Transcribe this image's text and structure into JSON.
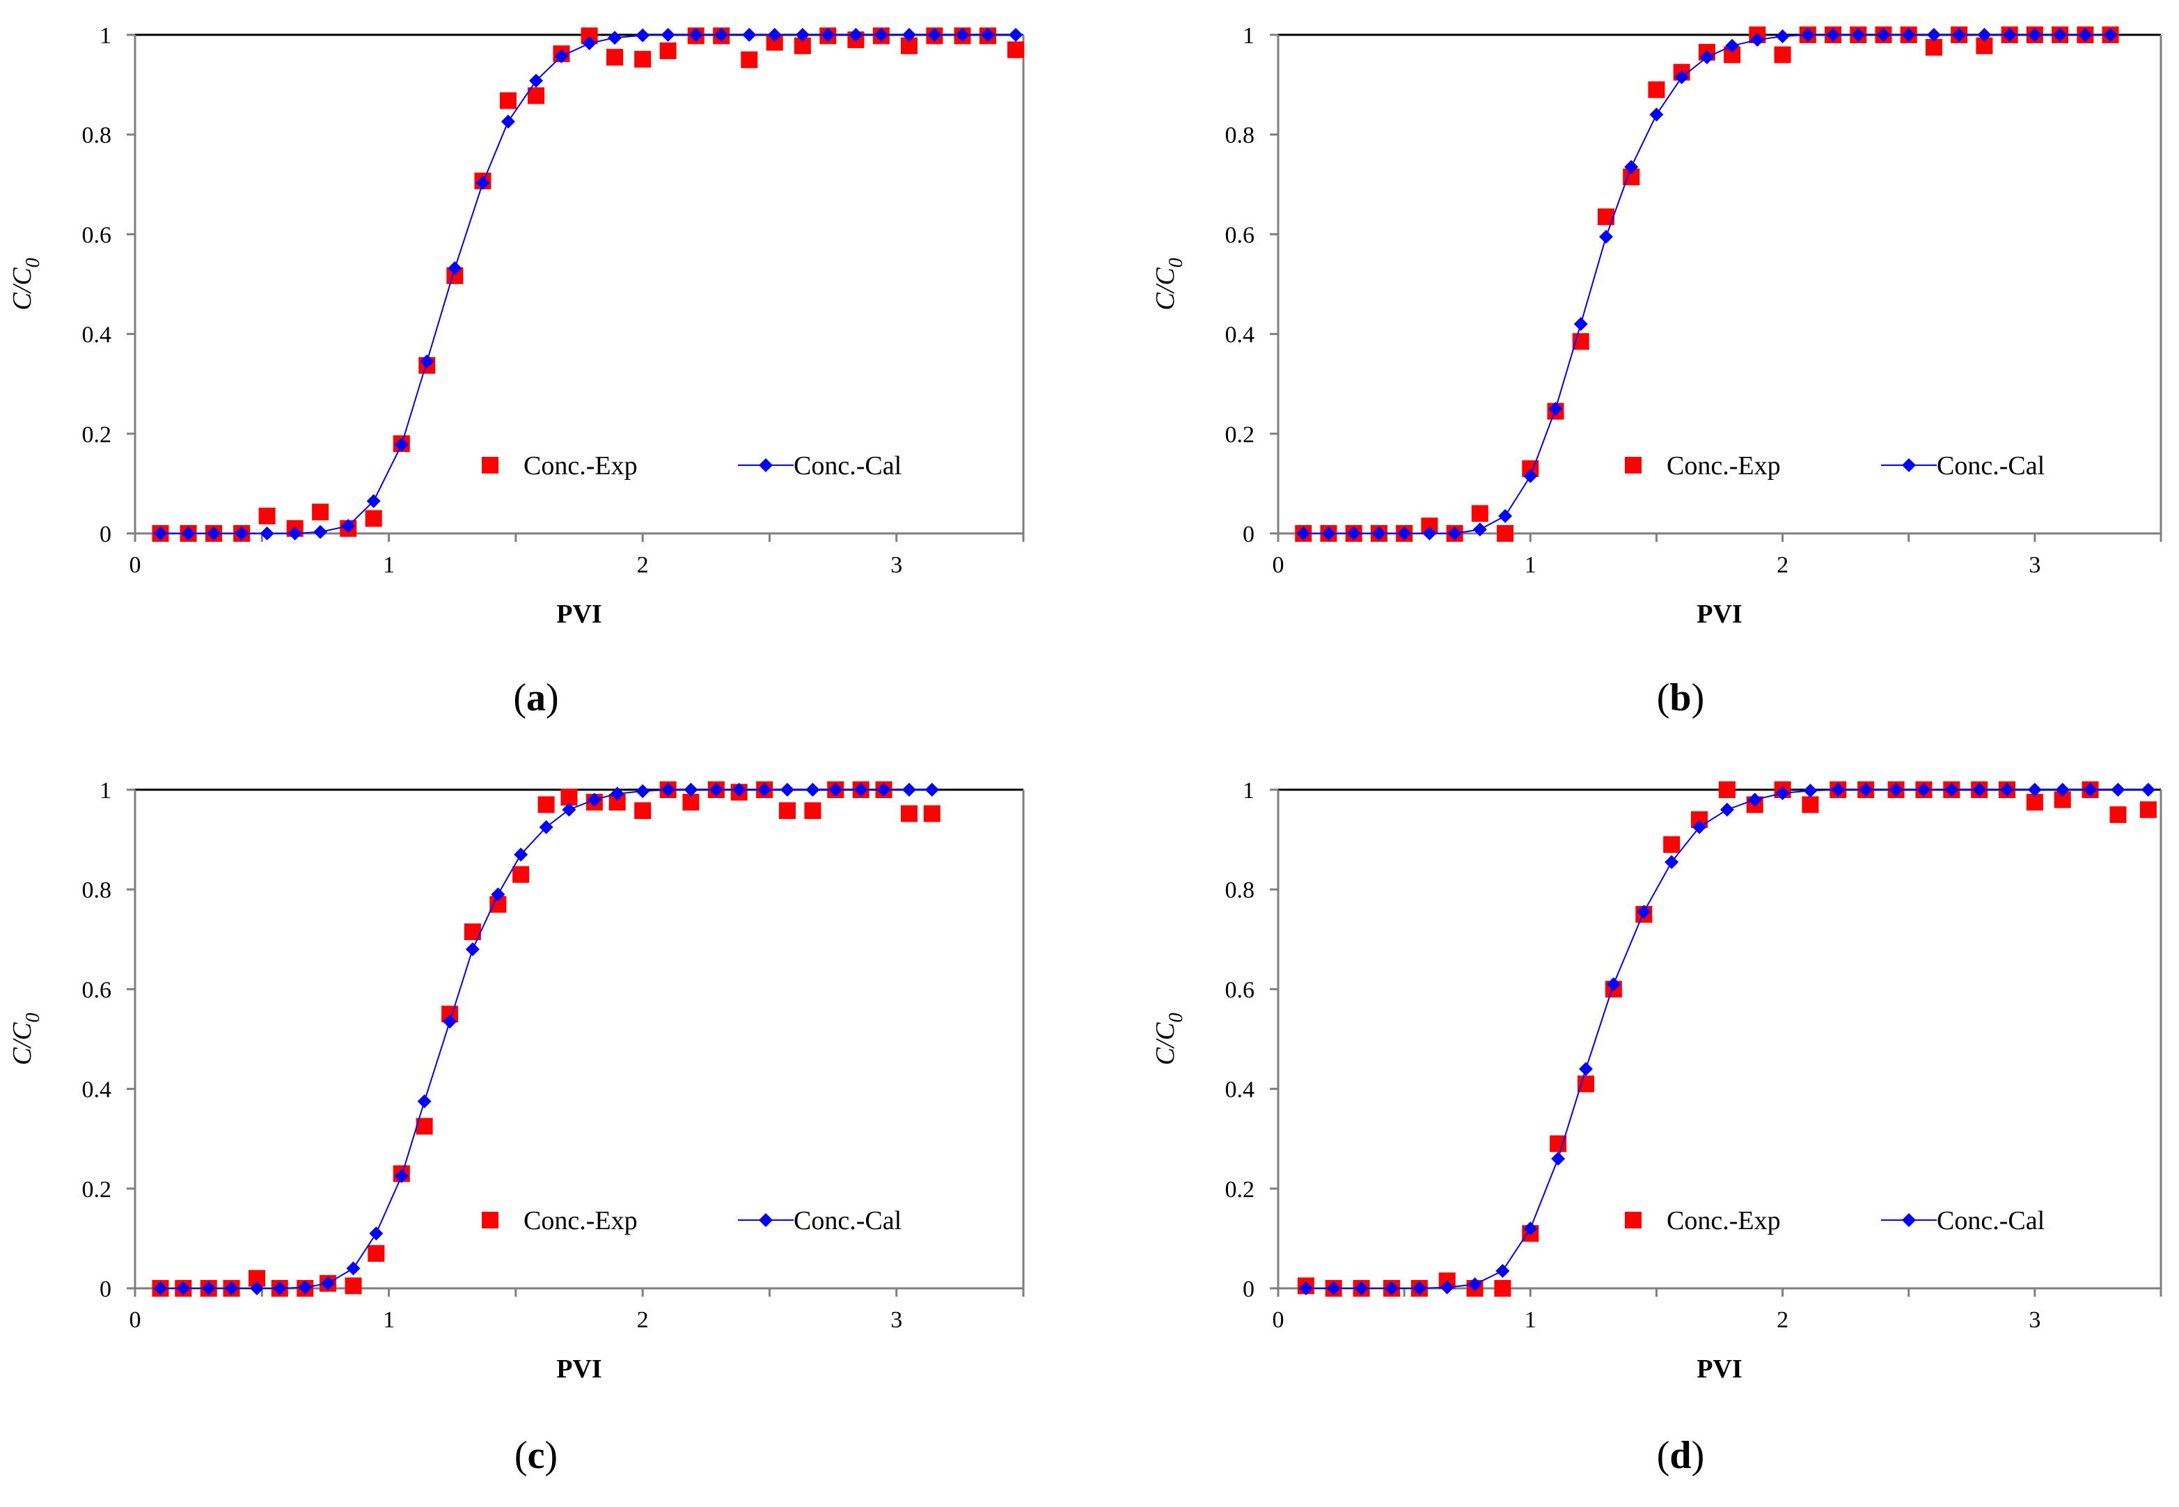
{
  "chart_data": [
    {
      "panel": "(a)",
      "panel_letter": "a",
      "type": "scatter",
      "xlabel": "PVI",
      "ylabel_main": "C/C",
      "ylabel_sub": "0",
      "xlim": [
        0,
        3.5
      ],
      "ylim": [
        0,
        1
      ],
      "xticks": [
        "0",
        "1",
        "2",
        "3"
      ],
      "yticks": [
        "0",
        "0.2",
        "0.4",
        "0.6",
        "0.8",
        "1"
      ],
      "series": [
        {
          "name": "Conc.-Exp",
          "marker": "square",
          "color": "#ff0000",
          "x": [
            0.1,
            0.21,
            0.31,
            0.42,
            0.52,
            0.63,
            0.73,
            0.84,
            0.94,
            1.05,
            1.15,
            1.26,
            1.37,
            1.47,
            1.58,
            1.68,
            1.79,
            1.89,
            2.0,
            2.1,
            2.21,
            2.31,
            2.42,
            2.52,
            2.63,
            2.73,
            2.84,
            2.94,
            3.05,
            3.15,
            3.26,
            3.36,
            3.47
          ],
          "y": [
            0,
            0,
            0,
            0,
            0.035,
            0.01,
            0.043,
            0.01,
            0.03,
            0.18,
            0.337,
            0.517,
            0.707,
            0.868,
            0.878,
            0.962,
            0.998,
            0.955,
            0.951,
            0.968,
            0.998,
            0.998,
            0.95,
            0.985,
            0.978,
            0.998,
            0.99,
            0.998,
            0.978,
            0.998,
            0.998,
            0.998,
            0.97
          ]
        },
        {
          "name": "Conc.-Cal",
          "marker": "diamond-line",
          "color": "#0000ff",
          "x": [
            0.1,
            0.21,
            0.31,
            0.42,
            0.52,
            0.63,
            0.73,
            0.84,
            0.94,
            1.05,
            1.15,
            1.26,
            1.37,
            1.47,
            1.58,
            1.68,
            1.79,
            1.89,
            2.0,
            2.1,
            2.21,
            2.31,
            2.42,
            2.52,
            2.63,
            2.73,
            2.84,
            2.94,
            3.05,
            3.15,
            3.26,
            3.36,
            3.47
          ],
          "y": [
            0,
            0,
            0,
            0,
            0,
            0,
            0.003,
            0.015,
            0.065,
            0.178,
            0.345,
            0.532,
            0.703,
            0.826,
            0.908,
            0.957,
            0.983,
            0.994,
            0.999,
            1,
            1,
            1,
            1,
            1,
            1,
            1,
            1,
            1,
            1,
            1,
            1,
            1,
            1
          ]
        }
      ]
    },
    {
      "panel": "(b)",
      "panel_letter": "b",
      "type": "scatter",
      "xlabel": "PVI",
      "ylabel_main": "C/C",
      "ylabel_sub": "0",
      "xlim": [
        0,
        3.5
      ],
      "ylim": [
        0,
        1
      ],
      "xticks": [
        "0",
        "1",
        "2",
        "3"
      ],
      "yticks": [
        "0",
        "0.2",
        "0.4",
        "0.6",
        "0.8",
        "1"
      ],
      "series": [
        {
          "name": "Conc.-Exp",
          "marker": "square",
          "color": "#ff0000",
          "x": [
            0.1,
            0.2,
            0.3,
            0.4,
            0.5,
            0.6,
            0.7,
            0.8,
            0.9,
            1.0,
            1.1,
            1.2,
            1.3,
            1.4,
            1.5,
            1.6,
            1.7,
            1.8,
            1.9,
            2.0,
            2.1,
            2.2,
            2.3,
            2.4,
            2.5,
            2.6,
            2.7,
            2.8,
            2.9,
            3.0,
            3.1,
            3.2,
            3.3
          ],
          "y": [
            0,
            0,
            0,
            0,
            0,
            0.015,
            0,
            0.04,
            0,
            0.13,
            0.245,
            0.385,
            0.635,
            0.715,
            0.89,
            0.925,
            0.965,
            0.96,
            1.0,
            0.96,
            1.0,
            1.0,
            1.0,
            1.0,
            1.0,
            0.975,
            1.0,
            0.978,
            1.0,
            1.0,
            1.0,
            1.0,
            1.0
          ]
        },
        {
          "name": "Conc.-Cal",
          "marker": "diamond-line",
          "color": "#0000ff",
          "x": [
            0.1,
            0.2,
            0.3,
            0.4,
            0.5,
            0.6,
            0.7,
            0.8,
            0.9,
            1.0,
            1.1,
            1.2,
            1.3,
            1.4,
            1.5,
            1.6,
            1.7,
            1.8,
            1.9,
            2.0,
            2.1,
            2.2,
            2.3,
            2.4,
            2.5,
            2.6,
            2.7,
            2.8,
            2.9,
            3.0,
            3.1,
            3.2,
            3.3
          ],
          "y": [
            0,
            0,
            0,
            0,
            0,
            0,
            0,
            0.008,
            0.035,
            0.115,
            0.25,
            0.42,
            0.595,
            0.735,
            0.84,
            0.915,
            0.955,
            0.978,
            0.99,
            0.997,
            1,
            1,
            1,
            1,
            1,
            1,
            1,
            1,
            1,
            1,
            1,
            1,
            1
          ]
        }
      ]
    },
    {
      "panel": "(c)",
      "panel_letter": "c",
      "type": "scatter",
      "xlabel": "PVI",
      "ylabel_main": "C/C",
      "ylabel_sub": "0",
      "xlim": [
        0,
        3.5
      ],
      "ylim": [
        0,
        1
      ],
      "xticks": [
        "0",
        "1",
        "2",
        "3"
      ],
      "yticks": [
        "0",
        "0.2",
        "0.4",
        "0.6",
        "0.8",
        "1"
      ],
      "series": [
        {
          "name": "Conc.-Exp",
          "marker": "square",
          "color": "#ff0000",
          "x": [
            0.1,
            0.19,
            0.29,
            0.38,
            0.48,
            0.57,
            0.67,
            0.76,
            0.86,
            0.95,
            1.05,
            1.14,
            1.24,
            1.33,
            1.43,
            1.52,
            1.62,
            1.71,
            1.81,
            1.9,
            2.0,
            2.1,
            2.19,
            2.29,
            2.38,
            2.48,
            2.57,
            2.67,
            2.76,
            2.86,
            2.95,
            3.05,
            3.14
          ],
          "y": [
            0,
            0,
            0,
            0,
            0.02,
            0,
            0,
            0.01,
            0.005,
            0.07,
            0.23,
            0.325,
            0.55,
            0.715,
            0.77,
            0.83,
            0.97,
            0.985,
            0.975,
            0.975,
            0.958,
            1.0,
            0.975,
            1.0,
            0.995,
            1.0,
            0.958,
            0.958,
            1.0,
            1.0,
            1.0,
            0.952,
            0.952
          ]
        },
        {
          "name": "Conc.-Cal",
          "marker": "diamond-line",
          "color": "#0000ff",
          "x": [
            0.1,
            0.19,
            0.29,
            0.38,
            0.48,
            0.57,
            0.67,
            0.76,
            0.86,
            0.95,
            1.05,
            1.14,
            1.24,
            1.33,
            1.43,
            1.52,
            1.62,
            1.71,
            1.81,
            1.9,
            2.0,
            2.1,
            2.19,
            2.29,
            2.38,
            2.48,
            2.57,
            2.67,
            2.76,
            2.86,
            2.95,
            3.05,
            3.14
          ],
          "y": [
            0,
            0,
            0,
            0,
            0,
            0,
            0.002,
            0.01,
            0.04,
            0.11,
            0.225,
            0.375,
            0.535,
            0.68,
            0.79,
            0.87,
            0.925,
            0.96,
            0.98,
            0.992,
            0.997,
            1,
            1,
            1,
            1,
            1,
            1,
            1,
            1,
            1,
            1,
            1,
            1
          ]
        }
      ]
    },
    {
      "panel": "(d)",
      "panel_letter": "d",
      "type": "scatter",
      "xlabel": "PVI",
      "ylabel_main": "C/C",
      "ylabel_sub": "0",
      "xlim": [
        0,
        3.5
      ],
      "ylim": [
        0,
        1
      ],
      "xticks": [
        "0",
        "1",
        "2",
        "3"
      ],
      "yticks": [
        "0",
        "0.2",
        "0.4",
        "0.6",
        "0.8",
        "1"
      ],
      "series": [
        {
          "name": "Conc.-Exp",
          "marker": "square",
          "color": "#ff0000",
          "x": [
            0.11,
            0.22,
            0.33,
            0.45,
            0.56,
            0.67,
            0.78,
            0.89,
            1.0,
            1.11,
            1.22,
            1.33,
            1.45,
            1.56,
            1.67,
            1.78,
            1.89,
            2.0,
            2.11,
            2.22,
            2.33,
            2.45,
            2.56,
            2.67,
            2.78,
            2.89,
            3.0,
            3.11,
            3.22,
            3.33,
            3.45
          ],
          "y": [
            0.005,
            0,
            0,
            0,
            0,
            0.015,
            0,
            0,
            0.11,
            0.29,
            0.41,
            0.6,
            0.75,
            0.89,
            0.94,
            1.0,
            0.97,
            1.0,
            0.97,
            1.0,
            1.0,
            1.0,
            1.0,
            1.0,
            1.0,
            1.0,
            0.975,
            0.98,
            1.0,
            0.95,
            0.96
          ]
        },
        {
          "name": "Conc.-Cal",
          "marker": "diamond-line",
          "color": "#0000ff",
          "x": [
            0.11,
            0.22,
            0.33,
            0.45,
            0.56,
            0.67,
            0.78,
            0.89,
            1.0,
            1.11,
            1.22,
            1.33,
            1.45,
            1.56,
            1.67,
            1.78,
            1.89,
            2.0,
            2.11,
            2.22,
            2.33,
            2.45,
            2.56,
            2.67,
            2.78,
            2.89,
            3.0,
            3.11,
            3.22,
            3.33,
            3.45
          ],
          "y": [
            0,
            0,
            0,
            0,
            0,
            0.002,
            0.008,
            0.035,
            0.12,
            0.26,
            0.44,
            0.61,
            0.755,
            0.855,
            0.925,
            0.96,
            0.98,
            0.993,
            0.998,
            1,
            1,
            1,
            1,
            1,
            1,
            1,
            1,
            1,
            1,
            1,
            1
          ]
        }
      ]
    }
  ]
}
